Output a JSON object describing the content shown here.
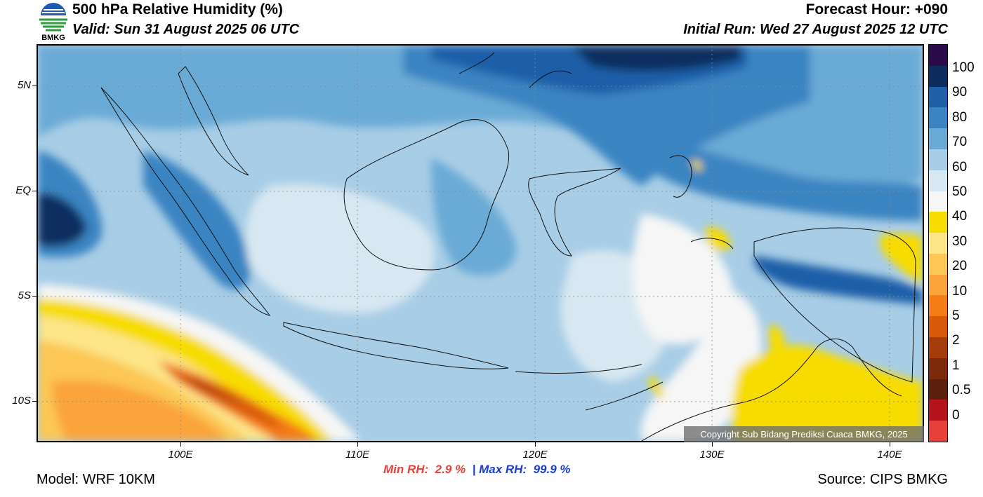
{
  "header": {
    "title": "500 hPa Relative Humidity (%)",
    "valid": "Valid: Sun 31 August 2025 06 UTC",
    "forecast_hour": "Forecast Hour: +090",
    "initial_run": "Initial Run: Wed 27 August 2025 12 UTC",
    "logo_text": "BMKG"
  },
  "axes": {
    "lat_labels": [
      "5N",
      "EQ",
      "5S",
      "10S"
    ],
    "lon_labels": [
      "100E",
      "110E",
      "120E",
      "130E",
      "140E"
    ]
  },
  "colorbar": {
    "labels": [
      "100",
      "90",
      "80",
      "70",
      "60",
      "50",
      "40",
      "30",
      "20",
      "10",
      "5",
      "2",
      "1",
      "0.5",
      "0"
    ],
    "colors": [
      "#2b0a4a",
      "#0d2d5e",
      "#1f5fa8",
      "#3a84c2",
      "#6aaad6",
      "#a8cde6",
      "#d8e8f2",
      "#f6f6f6",
      "#f7dc00",
      "#fde588",
      "#fcc755",
      "#fba43a",
      "#f57c16",
      "#d85a08",
      "#a53c0c",
      "#7c2a0c",
      "#5a200c",
      "#b5121b",
      "#e8403a"
    ]
  },
  "stats": {
    "min_label": "Min RH:",
    "min_value": "2.9 %",
    "separator": "|",
    "max_label": "Max RH:",
    "max_value": "99.9 %",
    "min_color": "#e8403a",
    "max_color": "#1c3fd1"
  },
  "footer": {
    "model": "Model: WRF 10KM",
    "source": "Source: CIPS BMKG",
    "copyright": "Copyright Sub Bidang Prediksi Cuaca BMKG, 2025"
  }
}
